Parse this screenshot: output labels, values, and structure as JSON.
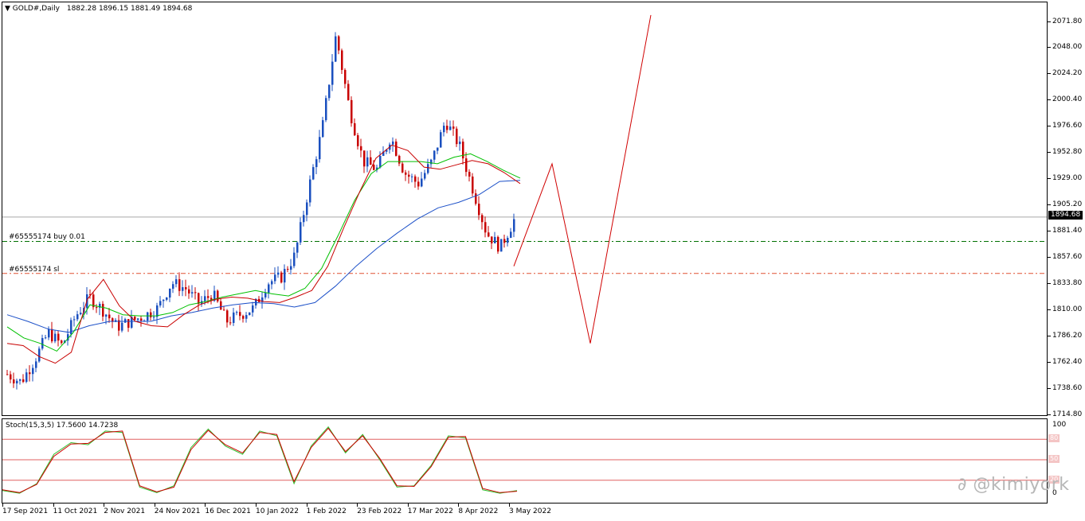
{
  "chart_header": {
    "symbol": "GOLD#,Daily",
    "ohlc": "1882.28 1896.15 1881.49 1894.68"
  },
  "current_price_label": "1894.68",
  "orders": {
    "buy_label": "#65555174 buy 0.01",
    "sl_label": "#65555174 sl"
  },
  "stoch_header": "Stoch(15,3,5) 17.5600 14.7238",
  "watermark": "@kimiyork",
  "price_axis": [
    "2071.80",
    "2048.00",
    "2024.20",
    "2000.40",
    "1976.60",
    "1952.80",
    "1929.00",
    "1905.20",
    "1881.40",
    "1857.60",
    "1833.80",
    "1810.00",
    "1786.20",
    "1762.40",
    "1738.60",
    "1714.80"
  ],
  "stoch_axis": [
    "100",
    "80",
    "50",
    "20",
    "0"
  ],
  "time_axis": [
    "17 Sep 2021",
    "11 Oct 2021",
    "2 Nov 2021",
    "24 Nov 2021",
    "16 Dec 2021",
    "10 Jan 2022",
    "1 Feb 2022",
    "23 Feb 2022",
    "17 Mar 2022",
    "8 Apr 2022",
    "3 May 2022"
  ],
  "colors": {
    "bull": "#1a4fbf",
    "bear": "#c80000",
    "ma_fast": "#c80000",
    "ma_mid": "#00c000",
    "ma_slow": "#1c50c8",
    "buy_line": "#007000",
    "sl_line": "#e05030",
    "projection": "#d00000",
    "stoch_main": "#2fc02f",
    "stoch_signal": "#d00000",
    "stoch_levels": "#e06060"
  },
  "chart_data": {
    "type": "candlestick",
    "symbol": "GOLD#",
    "timeframe": "Daily",
    "ylim": [
      1714.8,
      2071.8
    ],
    "current_price": 1894.68,
    "buy_order_price": 1872.5,
    "stop_loss_price": 1843.5,
    "trend": [
      1752,
      1745,
      1765,
      1790,
      1778,
      1805,
      1822,
      1810,
      1795,
      1800,
      1805,
      1812,
      1835,
      1830,
      1816,
      1825,
      1800,
      1806,
      1812,
      1835,
      1840,
      1860,
      1920,
      1975,
      2060,
      1992,
      1945,
      1938,
      1968,
      1935,
      1925,
      1945,
      1982,
      1960,
      1920,
      1880,
      1867,
      1892
    ],
    "ma_fast": [
      1780,
      1778,
      1768,
      1762,
      1772,
      1820,
      1838,
      1814,
      1800,
      1796,
      1795,
      1806,
      1815,
      1820,
      1822,
      1821,
      1818,
      1817,
      1822,
      1828,
      1850,
      1885,
      1918,
      1948,
      1960,
      1955,
      1940,
      1938,
      1942,
      1946,
      1943,
      1935,
      1925
    ],
    "ma_mid": [
      1795,
      1785,
      1780,
      1773,
      1790,
      1815,
      1812,
      1806,
      1805,
      1805,
      1808,
      1815,
      1818,
      1822,
      1825,
      1828,
      1825,
      1823,
      1830,
      1848,
      1878,
      1910,
      1934,
      1945,
      1945,
      1945,
      1943,
      1949,
      1952,
      1945,
      1937,
      1930
    ],
    "ma_slow": [
      1806,
      1800,
      1793,
      1790,
      1796,
      1800,
      1800,
      1800,
      1805,
      1808,
      1812,
      1815,
      1817,
      1816,
      1813,
      1817,
      1832,
      1850,
      1866,
      1880,
      1893,
      1903,
      1908,
      1915,
      1927,
      1928
    ],
    "projection": [
      1850,
      1943,
      1780,
      2078
    ],
    "stoch_main": [
      5,
      1,
      15,
      58,
      75,
      72,
      92,
      90,
      10,
      2,
      12,
      68,
      95,
      70,
      58,
      92,
      85,
      15,
      70,
      98,
      60,
      87,
      50,
      10,
      12,
      42,
      85,
      82,
      6,
      1,
      5
    ],
    "stoch_signal": [
      6,
      2,
      14,
      55,
      73,
      74,
      90,
      92,
      12,
      3,
      10,
      65,
      93,
      72,
      60,
      90,
      87,
      18,
      68,
      96,
      62,
      85,
      52,
      12,
      11,
      40,
      83,
      84,
      8,
      2,
      4
    ],
    "stoch_levels": [
      80,
      50,
      20
    ]
  }
}
